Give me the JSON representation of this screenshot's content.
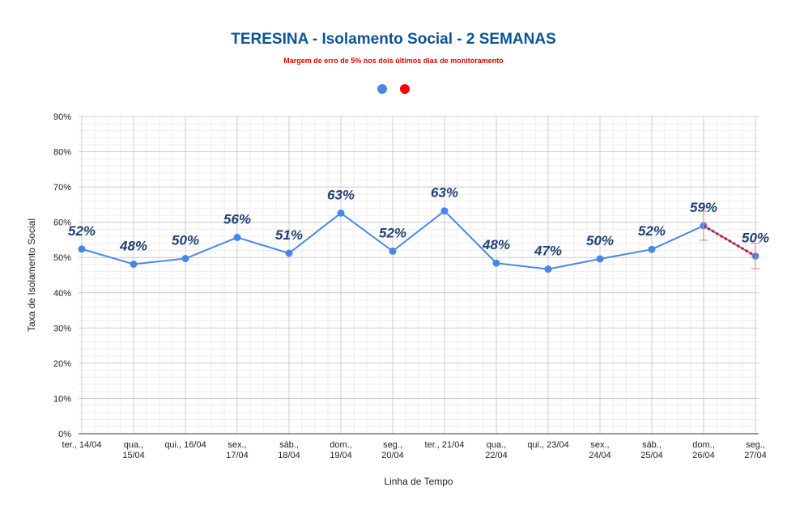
{
  "chart_data": {
    "type": "line",
    "title": "TERESINA - Isolamento Social - 2 SEMANAS",
    "subtitle": "Margem de erro de 5% nos dois últimos dias de monitoramento",
    "x_label": "Linha de Tempo",
    "y_label": "Taxa de Isolamento Social",
    "categories": [
      "ter., 14/04",
      "qua.,\n15/04",
      "qui., 16/04",
      "sex.,\n17/04",
      "sáb.,\n18/04",
      "dom.,\n19/04",
      "seg.,\n20/04",
      "ter., 21/04",
      "qua.,\n22/04",
      "qui., 23/04",
      "sex.,\n24/04",
      "sáb.,\n25/04",
      "dom.,\n26/04",
      "seg.,\n27/04"
    ],
    "series": [
      {
        "color": "#4a86e8",
        "values": [
          52.4,
          48.1,
          49.7,
          55.7,
          51.2,
          62.6,
          51.8,
          63.2,
          48.4,
          46.7,
          49.6,
          52.3,
          59.0,
          50.4
        ],
        "value_labels": [
          "52%",
          "48%",
          "50%",
          "56%",
          "51%",
          "63%",
          "52%",
          "63%",
          "48%",
          "47%",
          "50%",
          "52%",
          "59%",
          "50%"
        ]
      },
      {
        "color": "#ff0000",
        "values": [
          null,
          null,
          null,
          null,
          null,
          null,
          null,
          null,
          null,
          null,
          null,
          null,
          59.0,
          50.4
        ],
        "errors": [
          null,
          null,
          null,
          null,
          null,
          null,
          null,
          null,
          null,
          null,
          null,
          null,
          4.1,
          3.6
        ]
      }
    ],
    "ylim": [
      0,
      90
    ],
    "yticks": [
      {
        "value": 0,
        "label": "0%"
      },
      {
        "value": 10,
        "label": "10%"
      },
      {
        "value": 20,
        "label": "20%"
      },
      {
        "value": 30,
        "label": "30%"
      },
      {
        "value": 40,
        "label": "40%"
      },
      {
        "value": 50,
        "label": "50%"
      },
      {
        "value": 60,
        "label": "60%"
      },
      {
        "value": 70,
        "label": "70%"
      },
      {
        "value": 80,
        "label": "80%"
      },
      {
        "value": 90,
        "label": "90%"
      }
    ],
    "grid": true
  }
}
